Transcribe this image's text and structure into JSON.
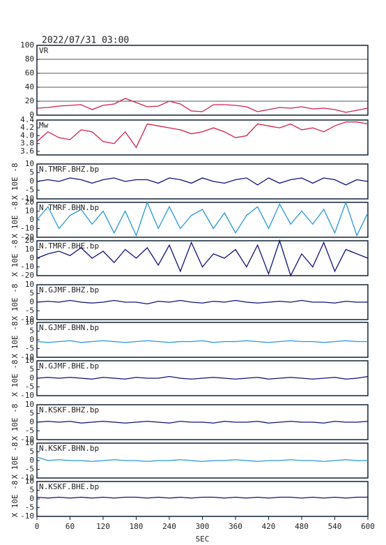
{
  "chart_data": [
    {
      "type": "line",
      "title": "2022/07/31 03:00",
      "label": "VR",
      "color": "#d0204a",
      "grid": true,
      "xlim": [
        0,
        600
      ],
      "ylim": [
        0,
        100
      ],
      "yticks": [
        0,
        20,
        40,
        60,
        80,
        100
      ],
      "x": [
        0,
        20,
        40,
        60,
        80,
        100,
        120,
        140,
        160,
        180,
        200,
        220,
        240,
        260,
        280,
        300,
        320,
        340,
        360,
        380,
        400,
        420,
        440,
        460,
        480,
        500,
        520,
        540,
        560,
        580,
        600
      ],
      "values": [
        10,
        11,
        13,
        14,
        15,
        8,
        14,
        16,
        24,
        18,
        12,
        13,
        20,
        16,
        6,
        5,
        15,
        15,
        14,
        12,
        5,
        8,
        11,
        10,
        12,
        9,
        10,
        8,
        4,
        7,
        10
      ]
    },
    {
      "type": "line",
      "label": "Mw",
      "color": "#d0204a",
      "xlim": [
        0,
        600
      ],
      "ylim": [
        3.51,
        4.4
      ],
      "yticks": [
        3.6,
        3.8,
        {
          "value": 4,
          "label": "4.0"
        },
        4.2,
        4.4
      ],
      "x": [
        0,
        20,
        40,
        60,
        80,
        100,
        120,
        140,
        160,
        180,
        200,
        220,
        240,
        260,
        280,
        300,
        320,
        340,
        360,
        380,
        400,
        420,
        440,
        460,
        480,
        500,
        520,
        540,
        560,
        580,
        600
      ],
      "values": [
        3.85,
        4.1,
        3.95,
        3.9,
        4.15,
        4.1,
        3.85,
        3.8,
        4.1,
        3.7,
        4.3,
        4.25,
        4.2,
        4.15,
        4.05,
        4.1,
        4.2,
        4.1,
        3.95,
        4.0,
        4.3,
        4.25,
        4.2,
        4.3,
        4.15,
        4.2,
        4.1,
        4.25,
        4.35,
        4.35,
        4.3
      ]
    },
    {
      "type": "line",
      "label": "N.TMRF.BHZ.bp",
      "ylabel": "X 10E -8",
      "color": "#10107a",
      "xlim": [
        0,
        600
      ],
      "ylim": [
        -10,
        10
      ],
      "yticks": [
        -10,
        -5,
        0,
        5,
        10
      ],
      "x": [
        0,
        20,
        40,
        60,
        80,
        100,
        120,
        140,
        160,
        180,
        200,
        220,
        240,
        260,
        280,
        300,
        320,
        340,
        360,
        380,
        400,
        420,
        440,
        460,
        480,
        500,
        520,
        540,
        560,
        580,
        600
      ],
      "values": [
        0,
        1,
        0,
        2,
        1,
        -1,
        1,
        2,
        0,
        1,
        1,
        -1,
        2,
        1,
        -1,
        2,
        0,
        -1,
        1,
        2,
        -2,
        2,
        -1,
        1,
        2,
        -1,
        2,
        1,
        -2,
        1,
        0
      ]
    },
    {
      "type": "line",
      "label": "N.TMRF.BHN.bp",
      "ylabel": "X 10E -8",
      "color": "#2a96d6",
      "xlim": [
        0,
        600
      ],
      "ylim": [
        -20,
        20
      ],
      "yticks": [
        -20,
        -10,
        0,
        10,
        20
      ],
      "x": [
        0,
        20,
        40,
        60,
        80,
        100,
        120,
        140,
        160,
        180,
        200,
        220,
        240,
        260,
        280,
        300,
        320,
        340,
        360,
        380,
        400,
        420,
        440,
        460,
        480,
        500,
        520,
        540,
        560,
        580,
        600
      ],
      "values": [
        0,
        15,
        -10,
        5,
        12,
        -5,
        10,
        -15,
        10,
        -18,
        20,
        -10,
        15,
        -10,
        5,
        12,
        -10,
        8,
        -15,
        5,
        15,
        -10,
        18,
        -5,
        10,
        -5,
        12,
        -15,
        20,
        -18,
        8
      ]
    },
    {
      "type": "line",
      "label": "N.TMRF.BHE.bp",
      "ylabel": "X 10E -8",
      "color": "#10107a",
      "xlim": [
        0,
        600
      ],
      "ylim": [
        -20,
        20
      ],
      "yticks": [
        -20,
        -10,
        0,
        10,
        20
      ],
      "x": [
        0,
        20,
        40,
        60,
        80,
        100,
        120,
        140,
        160,
        180,
        200,
        220,
        240,
        260,
        280,
        300,
        320,
        340,
        360,
        380,
        400,
        420,
        440,
        460,
        480,
        500,
        520,
        540,
        560,
        580,
        600
      ],
      "values": [
        0,
        5,
        8,
        3,
        12,
        0,
        8,
        -5,
        10,
        0,
        12,
        -8,
        15,
        -15,
        18,
        -10,
        5,
        0,
        10,
        -10,
        15,
        -18,
        20,
        -20,
        5,
        -10,
        18,
        -15,
        10,
        5,
        0
      ]
    },
    {
      "type": "line",
      "label": "N.GJMF.BHZ.bp",
      "ylabel": "X 10E -8",
      "color": "#10107a",
      "xlim": [
        0,
        600
      ],
      "ylim": [
        -10,
        10
      ],
      "yticks": [
        -10,
        -5,
        0,
        5,
        10
      ],
      "x": [
        0,
        20,
        40,
        60,
        80,
        100,
        120,
        140,
        160,
        180,
        200,
        220,
        240,
        260,
        280,
        300,
        320,
        340,
        360,
        380,
        400,
        420,
        440,
        460,
        480,
        500,
        520,
        540,
        560,
        580,
        600
      ],
      "values": [
        0,
        0.5,
        0,
        1,
        0,
        -0.5,
        0,
        1,
        0,
        0,
        -1,
        0.5,
        0,
        1,
        0,
        -0.5,
        0.5,
        0,
        1,
        0,
        -0.5,
        0,
        0.5,
        0,
        1,
        0,
        0,
        -0.5,
        0.5,
        0,
        0
      ]
    },
    {
      "type": "line",
      "label": "N.GJMF.BHN.bp",
      "ylabel": "X 10E -8",
      "color": "#2a96d6",
      "xlim": [
        0,
        600
      ],
      "ylim": [
        -10,
        10
      ],
      "yticks": [
        -10,
        -5,
        0,
        5,
        10
      ],
      "x": [
        0,
        20,
        40,
        60,
        80,
        100,
        120,
        140,
        160,
        180,
        200,
        220,
        240,
        260,
        280,
        300,
        320,
        340,
        360,
        380,
        400,
        420,
        440,
        460,
        480,
        500,
        520,
        540,
        560,
        580,
        600
      ],
      "values": [
        -1,
        -1.5,
        -1,
        -0.5,
        -1.5,
        -1,
        -0.5,
        -1,
        -1.5,
        -1,
        -0.5,
        -1,
        -1.5,
        -1,
        -1,
        -0.5,
        -1.5,
        -1,
        -1,
        -0.5,
        -1,
        -1.5,
        -1,
        -0.5,
        -1,
        -1,
        -1.5,
        -1,
        -0.5,
        -1,
        -1
      ]
    },
    {
      "type": "line",
      "label": "N.GJMF.BHE.bp",
      "ylabel": "X 10E -8",
      "color": "#10107a",
      "xlim": [
        0,
        600
      ],
      "ylim": [
        -10,
        10
      ],
      "yticks": [
        -10,
        -5,
        0,
        5,
        10
      ],
      "x": [
        0,
        20,
        40,
        60,
        80,
        100,
        120,
        140,
        160,
        180,
        200,
        220,
        240,
        260,
        280,
        300,
        320,
        340,
        360,
        380,
        400,
        420,
        440,
        460,
        480,
        500,
        520,
        540,
        560,
        580,
        600
      ],
      "values": [
        0,
        0.5,
        0,
        0.5,
        0,
        -0.5,
        0.5,
        0,
        -0.5,
        0.5,
        0,
        0,
        1,
        0,
        -0.5,
        0,
        0.5,
        0,
        -0.5,
        0,
        0.5,
        -0.5,
        0,
        0.5,
        0,
        -0.5,
        0,
        0.5,
        -0.5,
        0,
        1
      ]
    },
    {
      "type": "line",
      "label": "N.KSKF.BHZ.bp",
      "ylabel": "X 10E -8",
      "color": "#10107a",
      "xlim": [
        0,
        600
      ],
      "ylim": [
        -10,
        10
      ],
      "yticks": [
        -10,
        -5,
        0,
        5,
        10
      ],
      "x": [
        0,
        20,
        40,
        60,
        80,
        100,
        120,
        140,
        160,
        180,
        200,
        220,
        240,
        260,
        280,
        300,
        320,
        340,
        360,
        380,
        400,
        420,
        440,
        460,
        480,
        500,
        520,
        540,
        560,
        580,
        600
      ],
      "values": [
        0,
        0.5,
        0,
        0.5,
        -0.5,
        0,
        0.5,
        0,
        -0.5,
        0,
        0.5,
        0,
        -0.5,
        0.5,
        0,
        0,
        -0.5,
        0.5,
        0,
        0,
        0.5,
        -0.5,
        0,
        0.5,
        0,
        0,
        -0.5,
        0.5,
        0,
        0,
        0.5
      ]
    },
    {
      "type": "line",
      "label": "N.KSKF.BHN.bp",
      "ylabel": "X 10E -8",
      "color": "#2a96d6",
      "xlim": [
        0,
        600
      ],
      "ylim": [
        -10,
        10
      ],
      "yticks": [
        -10,
        -5,
        0,
        5,
        10
      ],
      "x": [
        0,
        20,
        40,
        60,
        80,
        100,
        120,
        140,
        160,
        180,
        200,
        220,
        240,
        260,
        280,
        300,
        320,
        340,
        360,
        380,
        400,
        420,
        440,
        460,
        480,
        500,
        520,
        540,
        560,
        580,
        600
      ],
      "values": [
        2,
        0,
        0.5,
        0,
        0,
        -0.5,
        0,
        0.5,
        0,
        0,
        -0.5,
        0,
        0,
        0.5,
        0,
        -0.5,
        0,
        0,
        0.5,
        0,
        -0.5,
        0,
        0,
        0.5,
        0,
        0,
        -0.5,
        0,
        0.5,
        0,
        0
      ]
    },
    {
      "type": "line",
      "label": "N.KSKF.BHE.bp",
      "ylabel": "X 10E -8",
      "color": "#10107a",
      "xlim": [
        0,
        600
      ],
      "ylim": [
        -10,
        10
      ],
      "yticks": [
        -10,
        -5,
        0,
        5,
        10
      ],
      "xlabel": "SEC",
      "xticks": [
        0,
        60,
        120,
        180,
        240,
        300,
        360,
        420,
        480,
        540,
        600
      ],
      "x": [
        0,
        20,
        40,
        60,
        80,
        100,
        120,
        140,
        160,
        180,
        200,
        220,
        240,
        260,
        280,
        300,
        320,
        340,
        360,
        380,
        400,
        420,
        440,
        460,
        480,
        500,
        520,
        540,
        560,
        580,
        600
      ],
      "values": [
        1,
        0.5,
        1,
        0.5,
        1,
        0.5,
        1,
        0.5,
        1,
        1,
        0.5,
        1,
        0.5,
        1,
        0.5,
        1,
        1,
        0.5,
        1,
        0.5,
        1,
        0.5,
        1,
        1,
        0.5,
        1,
        0.5,
        1,
        0.5,
        1,
        1
      ]
    }
  ]
}
